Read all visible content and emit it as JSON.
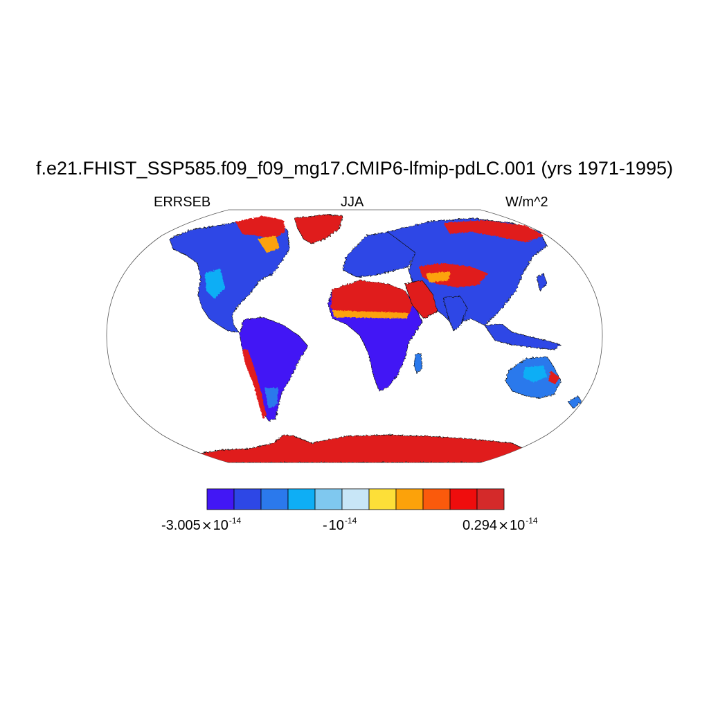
{
  "title": "f.e21.FHIST_SSP585.f09_f09_mg17.CMIP6-lfmip-pdLC.001 (yrs 1971-1995)",
  "left_label": "ERRSEB",
  "center_label": "JJA",
  "right_label": "W/m^2",
  "colorbar": {
    "colors": [
      "#4217f5",
      "#2d47e6",
      "#2b79ec",
      "#0eaef5",
      "#7fc8ef",
      "#c8e6f7",
      "#fddf38",
      "#fca20a",
      "#fa5a0c",
      "#ef0d0d",
      "#d42a2a"
    ],
    "labels": [
      {
        "mantissa": "-3.005",
        "times": "×",
        "base": "10",
        "exp": "-14"
      },
      {
        "mantissa": "-",
        "times": "",
        "base": "10",
        "exp": "-14"
      },
      {
        "mantissa": "0.294",
        "times": "×",
        "base": "10",
        "exp": "-14"
      }
    ]
  },
  "map": {
    "projection": "Robinson",
    "ocean_color": "#ffffff",
    "coastline_color": "#000000"
  }
}
